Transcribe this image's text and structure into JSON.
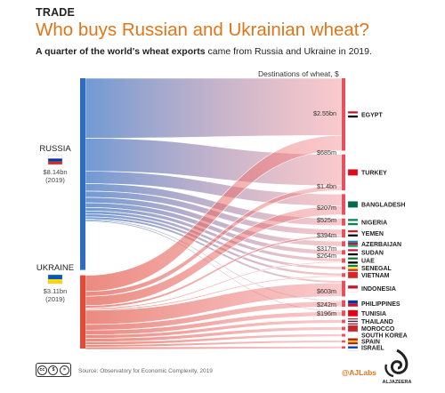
{
  "header": {
    "kicker": "TRADE",
    "title": "Who buys Russian and Ukrainian wheat?",
    "subtitle_bold": "A quarter of the world's wheat exports",
    "subtitle_rest": " came from Russia and Ukraine in 2019."
  },
  "chart_data": {
    "type": "sankey",
    "title": "Who buys Russian and Ukrainian wheat?",
    "column_label": "Destinations of wheat, $",
    "sources": [
      {
        "name": "RUSSIA",
        "value_label": "$8.14bn",
        "year_label": "(2019)",
        "value": 8.14,
        "color": "#2f6bbf"
      },
      {
        "name": "UKRAINE",
        "value_label": "$3.11bn",
        "year_label": "(2019)",
        "value": 3.11,
        "color": "#e04b3a"
      }
    ],
    "destinations": [
      {
        "name": "EGYPT",
        "russia": 2.55,
        "ukraine": 0.685,
        "labels": [
          "$2.55bn",
          "$685m"
        ]
      },
      {
        "name": "TURKEY",
        "russia": 1.4,
        "ukraine": 0.207,
        "labels": [
          "$1.4bn",
          "$207m"
        ]
      },
      {
        "name": "BANGLADESH",
        "russia": 0.525,
        "ukraine": 0.394,
        "labels": [
          "$525m",
          "$394m"
        ]
      },
      {
        "name": "NIGERIA",
        "russia": 0.317,
        "ukraine": 0,
        "labels": [
          "$317m"
        ]
      },
      {
        "name": "YEMEN",
        "russia": 0.264,
        "ukraine": 0.1,
        "labels": [
          "$264m"
        ]
      },
      {
        "name": "AZERBAIJAN",
        "russia": 0.23,
        "ukraine": 0,
        "labels": []
      },
      {
        "name": "SUDAN",
        "russia": 0.2,
        "ukraine": 0,
        "labels": []
      },
      {
        "name": "UAE",
        "russia": 0.15,
        "ukraine": 0.05,
        "labels": []
      },
      {
        "name": "SENEGAL",
        "russia": 0.13,
        "ukraine": 0,
        "labels": []
      },
      {
        "name": "VIETNAM",
        "russia": 0.12,
        "ukraine": 0.05,
        "labels": []
      },
      {
        "name": "INDONESIA",
        "russia": 0.1,
        "ukraine": 0.603,
        "labels": [
          "$603m"
        ]
      },
      {
        "name": "PHILIPPINES",
        "russia": 0.05,
        "ukraine": 0.242,
        "labels": [
          "$242m"
        ]
      },
      {
        "name": "TUNISIA",
        "russia": 0.05,
        "ukraine": 0.196,
        "labels": [
          "$196m"
        ]
      },
      {
        "name": "THAILAND",
        "russia": 0,
        "ukraine": 0.15,
        "labels": []
      },
      {
        "name": "MOROCCO",
        "russia": 0,
        "ukraine": 0.15,
        "labels": []
      },
      {
        "name": "SOUTH KOREA",
        "russia": 0,
        "ukraine": 0.12,
        "labels": []
      },
      {
        "name": "SPAIN",
        "russia": 0,
        "ukraine": 0.1,
        "labels": []
      },
      {
        "name": "ISRAEL",
        "russia": 0,
        "ukraine": 0.1,
        "labels": []
      }
    ]
  },
  "footer": {
    "source": "Source: Observatory for Economic Complexity, 2019",
    "cc": [
      "cc",
      "$",
      "="
    ],
    "credit": "@AJLabs",
    "logo_text": "ALJAZEERA"
  },
  "colors": {
    "accent": "#e0751a",
    "russia": "#2f6bbf",
    "ukraine": "#e04b3a"
  }
}
